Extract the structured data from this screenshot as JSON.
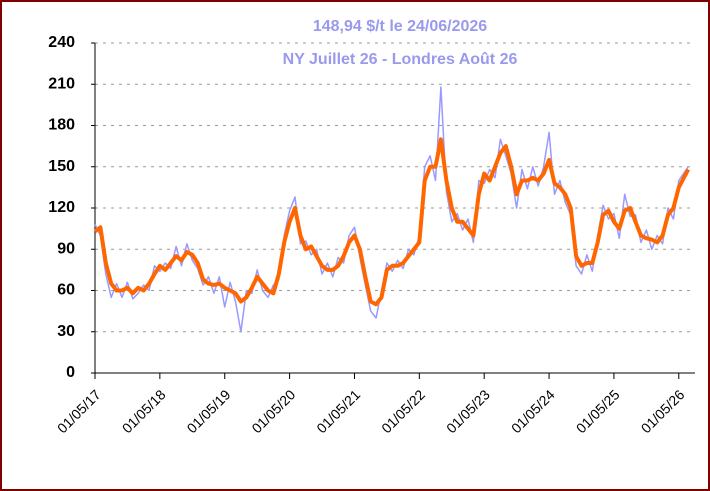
{
  "chart_data": {
    "type": "line",
    "title": "148,94 $/t le 24/06/2026",
    "subtitle": "NY Juillet 26 - Londres Août 26",
    "x": [
      "01/05/17",
      "01/06/17",
      "01/07/17",
      "01/08/17",
      "01/09/17",
      "01/10/17",
      "01/11/17",
      "01/12/17",
      "01/01/18",
      "01/02/18",
      "01/03/18",
      "01/04/18",
      "01/05/18",
      "01/06/18",
      "01/07/18",
      "01/08/18",
      "01/09/18",
      "01/10/18",
      "01/11/18",
      "01/12/18",
      "01/01/19",
      "01/02/19",
      "01/03/19",
      "01/04/19",
      "01/05/19",
      "01/06/19",
      "01/07/19",
      "01/08/19",
      "01/09/19",
      "01/10/19",
      "01/11/19",
      "01/12/19",
      "01/01/20",
      "01/02/20",
      "01/03/20",
      "01/04/20",
      "01/05/20",
      "01/06/20",
      "01/07/20",
      "01/08/20",
      "01/09/20",
      "01/10/20",
      "01/11/20",
      "01/12/20",
      "01/01/21",
      "01/02/21",
      "01/03/21",
      "01/04/21",
      "01/05/21",
      "01/06/21",
      "01/07/21",
      "01/08/21",
      "01/09/21",
      "01/10/21",
      "01/11/21",
      "01/12/21",
      "01/01/22",
      "01/02/22",
      "01/03/22",
      "01/04/22",
      "01/05/22",
      "01/06/22",
      "01/07/22",
      "01/08/22",
      "01/09/22",
      "01/10/22",
      "01/11/22",
      "01/12/22",
      "01/01/23",
      "01/02/23",
      "01/03/23",
      "01/04/23",
      "01/05/23",
      "01/06/23",
      "01/07/23",
      "01/08/23",
      "01/09/23",
      "01/10/23",
      "01/11/23",
      "01/12/23",
      "01/01/24",
      "01/02/24",
      "01/03/24",
      "01/04/24",
      "01/05/24",
      "01/06/24",
      "01/07/24",
      "01/08/24",
      "01/09/24",
      "01/10/24",
      "01/11/24",
      "01/12/24",
      "01/01/25",
      "01/02/25",
      "01/03/25",
      "01/04/25",
      "01/05/25",
      "01/06/25",
      "01/07/25",
      "01/08/25",
      "01/09/25",
      "01/10/25",
      "01/11/25",
      "01/12/25",
      "01/01/26",
      "01/02/26",
      "01/03/26",
      "01/04/26",
      "01/05/26",
      "24/06/26"
    ],
    "series": [
      {
        "color": "#9999ff",
        "width": 1.5,
        "values": [
          108,
          100,
          72,
          55,
          65,
          55,
          66,
          54,
          58,
          64,
          60,
          78,
          74,
          80,
          76,
          92,
          78,
          94,
          82,
          76,
          64,
          70,
          58,
          70,
          48,
          66,
          52,
          30,
          60,
          58,
          75,
          60,
          55,
          64,
          68,
          100,
          118,
          128,
          94,
          96,
          86,
          90,
          72,
          80,
          70,
          84,
          80,
          100,
          106,
          84,
          64,
          45,
          40,
          60,
          80,
          74,
          82,
          76,
          90,
          86,
          100,
          150,
          158,
          140,
          208,
          132,
          110,
          116,
          104,
          112,
          95,
          140,
          138,
          148,
          142,
          170,
          158,
          145,
          120,
          148,
          134,
          150,
          136,
          150,
          175,
          130,
          140,
          124,
          115,
          78,
          72,
          86,
          74,
          100,
          122,
          112,
          116,
          98,
          130,
          114,
          115,
          95,
          104,
          90,
          100,
          94,
          120,
          112,
          140,
          150
        ]
      },
      {
        "color": "#ff6600",
        "width": 4,
        "values": [
          103,
          106,
          80,
          65,
          60,
          60,
          62,
          58,
          62,
          60,
          65,
          72,
          78,
          75,
          80,
          85,
          82,
          88,
          86,
          80,
          68,
          65,
          64,
          65,
          62,
          60,
          58,
          52,
          55,
          62,
          70,
          65,
          60,
          58,
          72,
          95,
          110,
          120,
          100,
          90,
          92,
          85,
          78,
          75,
          75,
          78,
          85,
          95,
          100,
          90,
          70,
          52,
          50,
          55,
          75,
          78,
          78,
          80,
          85,
          90,
          95,
          140,
          150,
          150,
          170,
          140,
          120,
          110,
          110,
          105,
          100,
          130,
          145,
          140,
          150,
          160,
          165,
          150,
          130,
          140,
          140,
          142,
          140,
          145,
          155,
          138,
          135,
          130,
          120,
          85,
          78,
          80,
          80,
          95,
          115,
          118,
          110,
          105,
          118,
          120,
          110,
          100,
          98,
          97,
          95,
          100,
          115,
          120,
          135,
          148
        ]
      }
    ],
    "xlim": [
      "01/05/17",
      "01/08/26"
    ],
    "xticks": [
      "01/05/17",
      "01/05/18",
      "01/05/19",
      "01/05/20",
      "01/05/21",
      "01/05/22",
      "01/05/23",
      "01/05/24",
      "01/05/25",
      "01/05/26"
    ],
    "ylim": [
      0,
      240
    ],
    "yticks": [
      0,
      30,
      60,
      90,
      120,
      150,
      180,
      210,
      240
    ],
    "grid": true
  }
}
